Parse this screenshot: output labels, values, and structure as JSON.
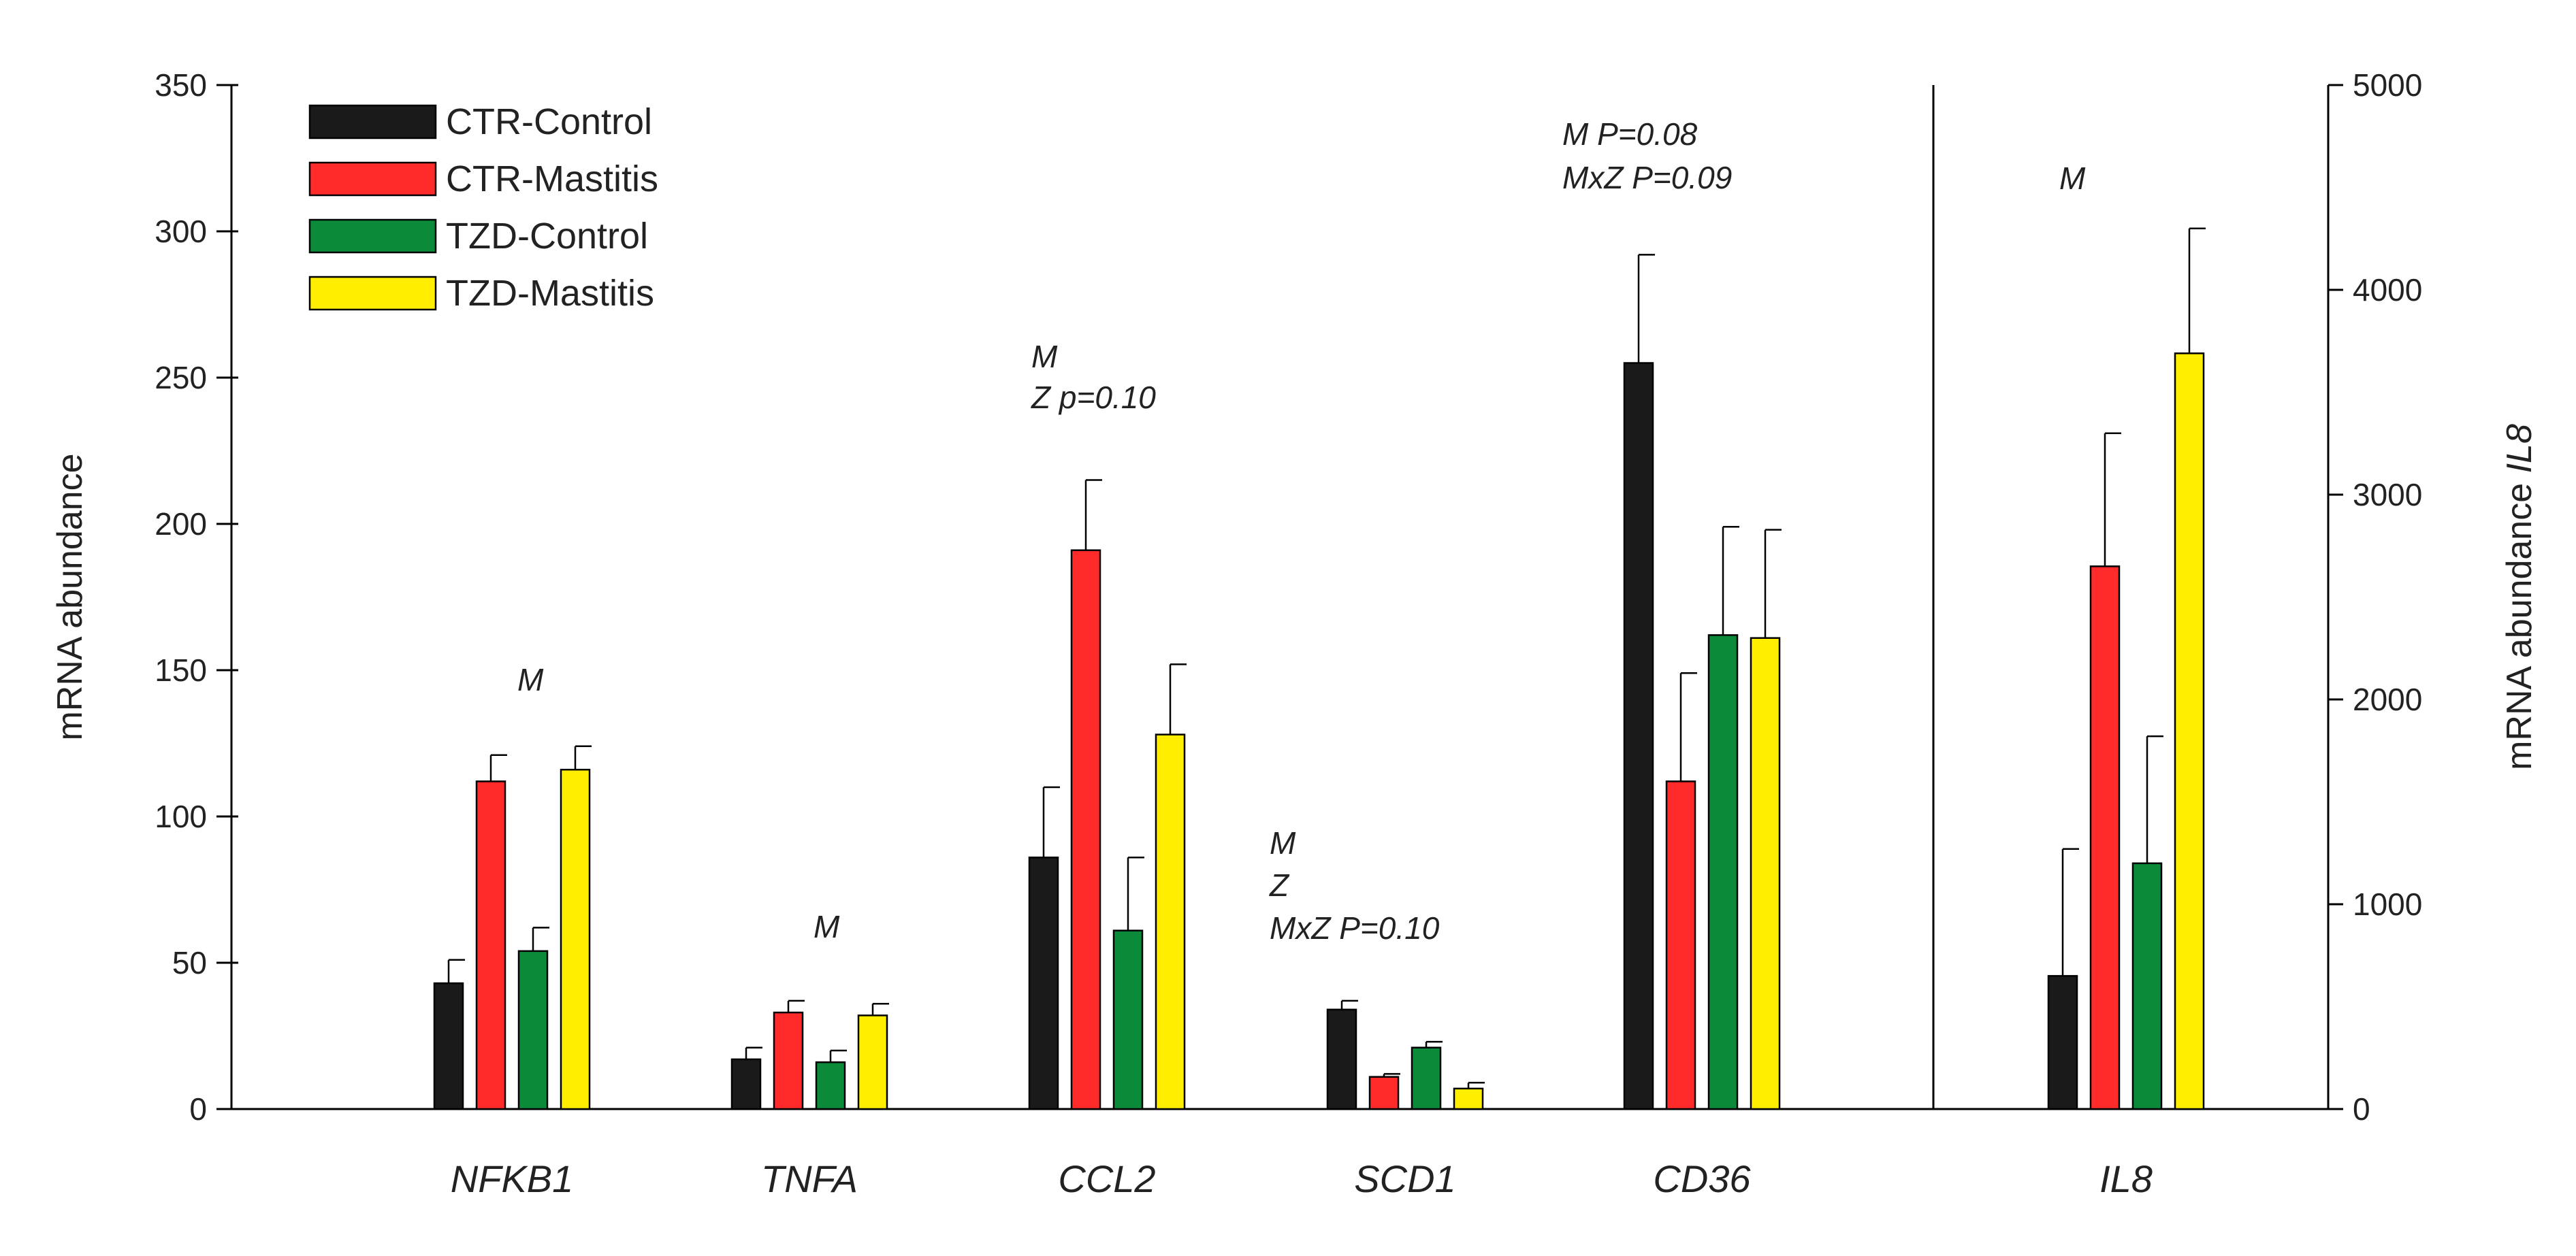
{
  "chart_data": {
    "type": "bar",
    "categories": [
      "NFKB1",
      "TNFA",
      "CCL2",
      "SCD1",
      "CD36",
      "IL8"
    ],
    "series": [
      {
        "name": "CTR-Control",
        "color": "#1a1a1a",
        "values": [
          43,
          17,
          86,
          34,
          255,
          650
        ],
        "errors": [
          51,
          21,
          110,
          37,
          292,
          1270
        ]
      },
      {
        "name": "CTR-Mastitis",
        "color": "#ff2a2a",
        "values": [
          112,
          33,
          191,
          11,
          112,
          2650
        ],
        "errors": [
          121,
          37,
          215,
          12,
          149,
          3300
        ]
      },
      {
        "name": "TZD-Control",
        "color": "#0b8a3a",
        "values": [
          54,
          16,
          61,
          21,
          162,
          1200
        ],
        "errors": [
          62,
          20,
          86,
          23,
          199,
          1820
        ]
      },
      {
        "name": "TZD-Mastitis",
        "color": "#ffee00",
        "values": [
          116,
          32,
          128,
          7,
          161,
          3690
        ],
        "errors": [
          124,
          36,
          152,
          9,
          198,
          4300
        ]
      }
    ],
    "left_axis": {
      "label": "mRNA abundance",
      "ylim": [
        0,
        350
      ],
      "ticks": [
        "0",
        "50",
        "100",
        "150",
        "200",
        "250",
        "300",
        "350"
      ]
    },
    "right_axis": {
      "label_prefix": "mRNA abundance ",
      "label_italic": "IL8",
      "ylim": [
        0,
        5000
      ],
      "ticks": [
        "0",
        "1000",
        "2000",
        "3000",
        "4000",
        "5000"
      ],
      "applies_to": [
        "IL8"
      ]
    },
    "annotations": [
      {
        "category": "NFKB1",
        "lines": [
          "M"
        ]
      },
      {
        "category": "TNFA",
        "lines": [
          "M"
        ]
      },
      {
        "category": "CCL2",
        "lines": [
          "M",
          "Z p=0.10"
        ]
      },
      {
        "category": "SCD1",
        "lines": [
          "M",
          "Z",
          "MxZ P=0.10"
        ]
      },
      {
        "category": "CD36",
        "lines": [
          "M    P=0.08",
          "MxZ P=0.09"
        ]
      },
      {
        "category": "IL8",
        "lines": [
          "M"
        ]
      }
    ],
    "legend": {
      "position": "top-left",
      "entries": [
        "CTR-Control",
        "CTR-Mastitis",
        "TZD-Control",
        "TZD-Mastitis"
      ]
    }
  }
}
